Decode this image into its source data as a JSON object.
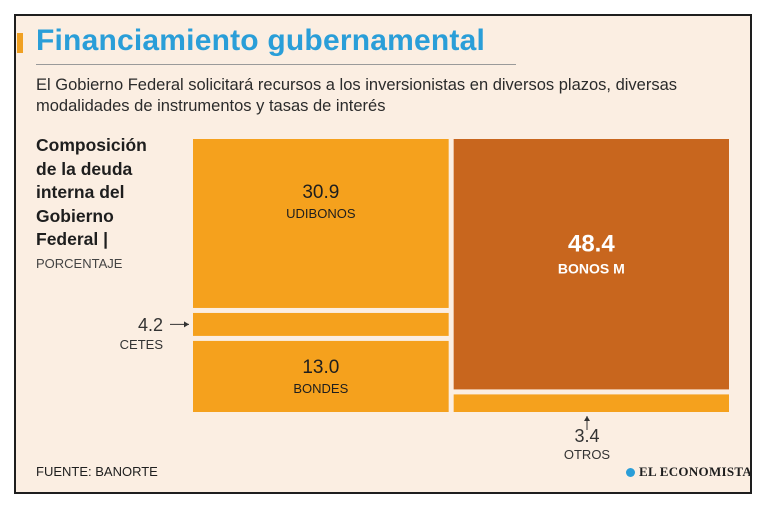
{
  "header": {
    "title": "Financiamiento gubernamental",
    "subtitle": "El Gobierno Federal solicitará recursos a los inversionistas en diversos plazos, diversas modalidades de instrumentos y tasas de interés"
  },
  "chart_data": {
    "type": "treemap",
    "title": "Composición de la deuda interna del Gobierno Federal |",
    "unit": "PORCENTAJE",
    "categories": [
      "UDIBONOS",
      "CETES",
      "BONDES",
      "BONOS M",
      "OTROS"
    ],
    "values": [
      30.9,
      4.2,
      13.0,
      48.4,
      3.4
    ],
    "value_labels": [
      "30.9",
      "4.2",
      "13.0",
      "48.4",
      "3.4"
    ],
    "colors": {
      "UDIBONOS": "#f5a11d",
      "CETES": "#f5a11d",
      "BONDES": "#f5a11d",
      "BONOS M": "#c8661e",
      "OTROS": "#f5a11d"
    }
  },
  "footer": {
    "source": "FUENTE: BANORTE",
    "brand": "EL ECONOMISTA"
  }
}
